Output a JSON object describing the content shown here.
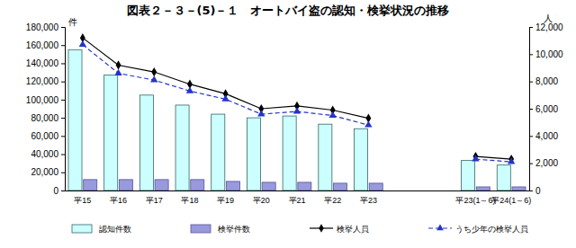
{
  "chart_data": {
    "type": "bar",
    "title": "図表２－３－(5)－１　オートバイ盗の認知・検挙状況の推移",
    "ylabel": "件",
    "y2label": "人",
    "categories": [
      "平15",
      "平16",
      "平17",
      "平18",
      "平19",
      "平20",
      "平21",
      "平22",
      "平23",
      null,
      null,
      "平23(1～6)",
      "平24(1～6)"
    ],
    "series": [
      {
        "name": "認知件数",
        "type": "bar",
        "color": "#ccffff",
        "values": [
          155000,
          127000,
          105000,
          94000,
          84000,
          80000,
          82000,
          73000,
          68000,
          null,
          null,
          33000,
          28000
        ]
      },
      {
        "name": "検挙件数",
        "type": "bar",
        "color": "#9999dd",
        "values": [
          12000,
          12000,
          12000,
          12000,
          10000,
          9000,
          9000,
          8000,
          8000,
          null,
          null,
          4000,
          4000
        ]
      },
      {
        "name": "検挙人員",
        "type": "line",
        "axis": "y2",
        "color": "#000000",
        "marker": "diamond",
        "line_style": "solid",
        "values": [
          11200,
          9200,
          8700,
          7800,
          7100,
          6000,
          6200,
          5900,
          5300,
          null,
          null,
          2500,
          2300
        ]
      },
      {
        "name": "うち少年の検挙人員",
        "type": "line",
        "axis": "y2",
        "color": "#2233cc",
        "marker": "triangle",
        "line_style": "dashed",
        "values": [
          10700,
          8600,
          8100,
          7300,
          6700,
          5600,
          5800,
          5500,
          4800,
          null,
          null,
          2300,
          2100
        ]
      }
    ],
    "ylim": [
      0,
      180000
    ],
    "yticks": [
      0,
      {
        "value": 20000,
        "label": "20,000"
      },
      {
        "value": 40000,
        "label": "40,000"
      },
      {
        "value": 60000,
        "label": "60,000"
      },
      {
        "value": 80000,
        "label": "80,000"
      },
      {
        "value": 100000,
        "label": "100,000"
      },
      {
        "value": 120000,
        "label": "120,000"
      },
      {
        "value": 140000,
        "label": "140,000"
      },
      {
        "value": 160000,
        "label": "160,000"
      },
      {
        "value": 180000,
        "label": "180,000"
      }
    ],
    "y2lim": [
      0,
      12000
    ],
    "y2ticks": [
      0,
      {
        "value": 2000,
        "label": "2,000"
      },
      {
        "value": 4000,
        "label": "4,000"
      },
      {
        "value": 6000,
        "label": "6,000"
      },
      {
        "value": 8000,
        "label": "8,000"
      },
      {
        "value": 10000,
        "label": "10,000"
      },
      {
        "value": 12000,
        "label": "12,000"
      }
    ],
    "grid": false,
    "legend": "bottom"
  }
}
